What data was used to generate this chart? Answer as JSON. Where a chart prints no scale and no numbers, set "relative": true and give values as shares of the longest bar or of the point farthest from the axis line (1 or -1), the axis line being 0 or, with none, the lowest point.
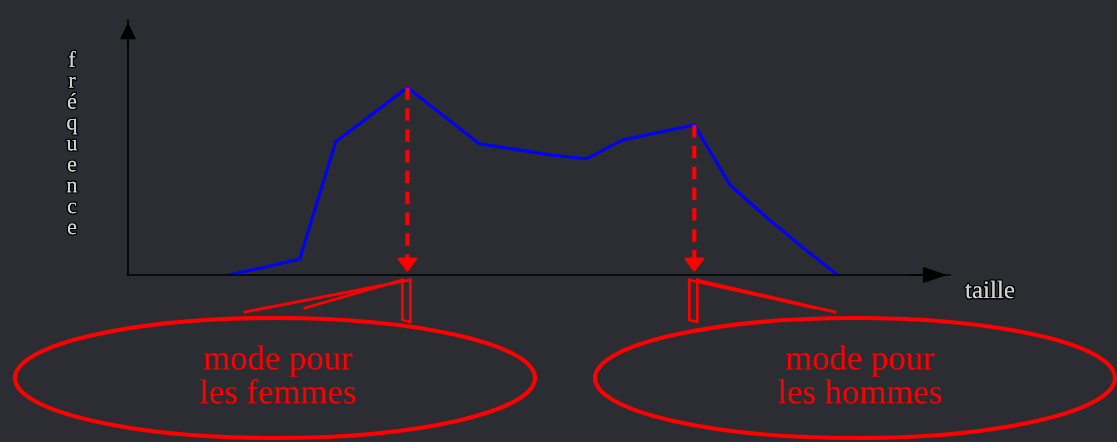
{
  "chart_data": {
    "type": "line",
    "xlabel": "taille",
    "ylabel": "fréquence",
    "relative": true,
    "categories": [
      null,
      null,
      null,
      null,
      null,
      null,
      null,
      null,
      null,
      null,
      null,
      null,
      null,
      null,
      null,
      null,
      null,
      null,
      null,
      null,
      null,
      null,
      null
    ],
    "series": [
      {
        "color": "#0000ff",
        "values": [
          null,
          null,
          0,
          0.04,
          0.085,
          0.71,
          0.855,
          1,
          0.85,
          0.7,
          0.67,
          0.64,
          0.62,
          0.72,
          0.76,
          0.8,
          0.48,
          0.31,
          0.15,
          0,
          null,
          null,
          null
        ]
      }
    ],
    "annotations": [
      "mode pour\nles femmes",
      "mode pour\nles hommes"
    ]
  }
}
